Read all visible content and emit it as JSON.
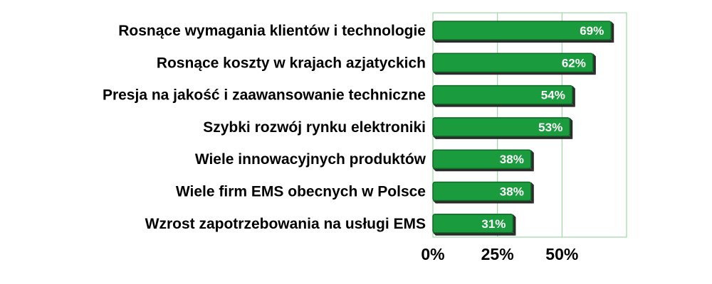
{
  "chart_data": {
    "type": "bar",
    "orientation": "horizontal",
    "categories": [
      "Rosnące wymagania klientów i technologie",
      "Rosnące koszty w krajach azjatyckich",
      "Presja na jakość i zaawansowanie techniczne",
      "Szybki rozwój rynku elektroniki",
      "Wiele innowacyjnych produktów",
      "Wiele firm EMS obecnych w Polsce",
      "Wzrost zapotrzebowania na usługi EMS"
    ],
    "values": [
      69,
      62,
      54,
      53,
      38,
      38,
      31
    ],
    "value_labels": [
      "69%",
      "62%",
      "54%",
      "53%",
      "38%",
      "38%",
      "31%"
    ],
    "x_ticks": [
      "0%",
      "25%",
      "50%"
    ],
    "xlim": [
      0,
      75
    ],
    "grid": "vertical",
    "colors": {
      "bar": "#1a9c3e",
      "bar_edge": "#0f6a26",
      "bar_shadow": "#2b2b2b",
      "grid": "#9fd6a8",
      "label_text": "#000000",
      "value_text": "#ffffff"
    }
  }
}
